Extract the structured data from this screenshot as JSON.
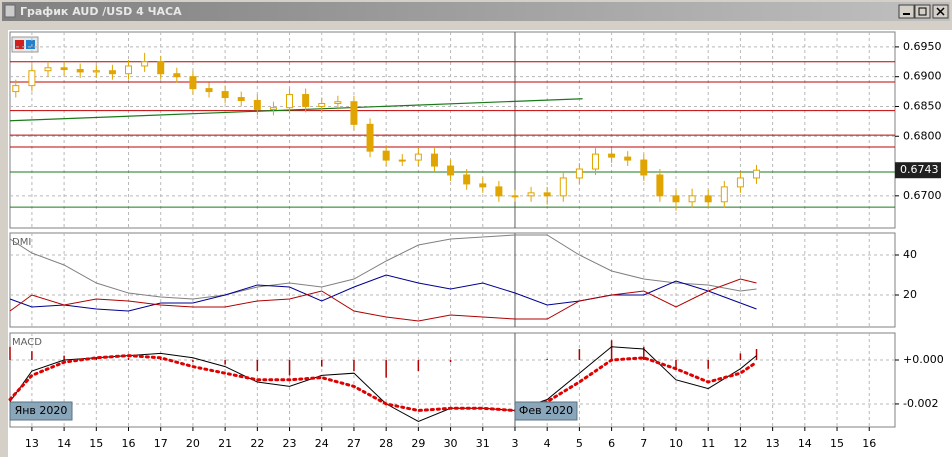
{
  "window": {
    "title": "График AUD /USD  4 ЧАСА"
  },
  "month_labels": [
    {
      "value": -0.68,
      "label": "Янв 2020"
    },
    {
      "value": 15,
      "label": "Фев 2020"
    }
  ],
  "chart_data": [
    {
      "type": "candlestick",
      "xlim": [
        -0.68,
        26.8
      ],
      "ylim": [
        0.6646,
        0.6975
      ],
      "yticks": [
        {
          "value": 0.695,
          "label": "0.6950"
        },
        {
          "value": 0.69,
          "label": "0.6900"
        },
        {
          "value": 0.685,
          "label": "0.6850"
        },
        {
          "value": 0.68,
          "label": "0.6800"
        },
        {
          "value": 0.67,
          "label": "0.6700"
        }
      ],
      "color": "#e0a500",
      "grid": true,
      "x": [
        -0.5,
        0,
        0.5,
        1,
        1.5,
        2,
        2.5,
        3,
        3.5,
        4,
        4.5,
        5,
        5.5,
        6,
        6.5,
        7,
        7.5,
        8,
        8.5,
        9,
        9.5,
        10,
        10.5,
        11,
        11.5,
        12,
        12.5,
        13,
        13.5,
        14,
        14.5,
        15,
        15.5,
        16,
        16.5,
        17,
        17.5,
        18,
        18.5,
        19,
        19.5,
        20,
        20.5,
        21,
        21.5,
        22,
        22.5
      ],
      "open": [
        0.6875,
        0.6885,
        0.691,
        0.6915,
        0.6912,
        0.6908,
        0.691,
        0.6905,
        0.6918,
        0.6925,
        0.6905,
        0.69,
        0.688,
        0.6875,
        0.6865,
        0.686,
        0.6845,
        0.6848,
        0.687,
        0.685,
        0.6855,
        0.6858,
        0.682,
        0.6775,
        0.676,
        0.676,
        0.677,
        0.675,
        0.6735,
        0.672,
        0.6715,
        0.67,
        0.67,
        0.6705,
        0.67,
        0.673,
        0.6745,
        0.677,
        0.6765,
        0.676,
        0.6735,
        0.67,
        0.669,
        0.67,
        0.669,
        0.6715,
        0.673
      ],
      "high": [
        0.6895,
        0.692,
        0.6925,
        0.6925,
        0.6922,
        0.692,
        0.692,
        0.6928,
        0.694,
        0.6935,
        0.6915,
        0.691,
        0.689,
        0.6885,
        0.6875,
        0.687,
        0.6858,
        0.688,
        0.688,
        0.6865,
        0.6868,
        0.6868,
        0.683,
        0.6785,
        0.677,
        0.6782,
        0.678,
        0.676,
        0.6745,
        0.673,
        0.6725,
        0.671,
        0.6715,
        0.6715,
        0.674,
        0.6755,
        0.678,
        0.678,
        0.6775,
        0.677,
        0.6745,
        0.671,
        0.6712,
        0.671,
        0.6725,
        0.674,
        0.6752
      ],
      "low": [
        0.6865,
        0.6875,
        0.69,
        0.6902,
        0.6898,
        0.6898,
        0.6895,
        0.6895,
        0.6908,
        0.6895,
        0.689,
        0.687,
        0.6865,
        0.6855,
        0.685,
        0.6835,
        0.6835,
        0.6838,
        0.684,
        0.684,
        0.6845,
        0.681,
        0.6765,
        0.675,
        0.675,
        0.675,
        0.674,
        0.6725,
        0.671,
        0.6705,
        0.669,
        0.669,
        0.669,
        0.6685,
        0.669,
        0.672,
        0.6735,
        0.6755,
        0.675,
        0.6725,
        0.669,
        0.6675,
        0.668,
        0.668,
        0.668,
        0.6705,
        0.672
      ],
      "close": [
        0.6885,
        0.691,
        0.6915,
        0.6912,
        0.6908,
        0.691,
        0.6905,
        0.6918,
        0.6925,
        0.6905,
        0.69,
        0.688,
        0.6875,
        0.6865,
        0.686,
        0.6845,
        0.6848,
        0.687,
        0.685,
        0.6855,
        0.6858,
        0.682,
        0.6775,
        0.676,
        0.676,
        0.677,
        0.675,
        0.6735,
        0.672,
        0.6715,
        0.67,
        0.67,
        0.6705,
        0.67,
        0.673,
        0.6745,
        0.677,
        0.6765,
        0.676,
        0.6735,
        0.67,
        0.669,
        0.67,
        0.669,
        0.6715,
        0.673,
        0.6743
      ],
      "levels": [
        {
          "value": 0.6925,
          "color": "#c00000"
        },
        {
          "value": 0.6891,
          "color": "#c00000"
        },
        {
          "value": 0.6843,
          "color": "#c00000"
        },
        {
          "value": 0.6802,
          "color": "#c00000"
        },
        {
          "value": 0.6782,
          "color": "#c00000"
        },
        {
          "value": 0.674,
          "color": "#1a7a1a"
        },
        {
          "value": 0.6681,
          "color": "#1a7a1a"
        }
      ],
      "trendline": {
        "x": [
          -0.68,
          17.1
        ],
        "values": [
          0.6826,
          0.6863
        ],
        "color": "#1a7a1a"
      },
      "last_price": {
        "value": 0.6743,
        "label": "0.6743"
      }
    },
    {
      "type": "line",
      "title": "DMI",
      "xlim": [
        -0.68,
        26.8
      ],
      "ylim": [
        4,
        51
      ],
      "yticks": [
        40,
        20
      ],
      "grid": true,
      "x": [
        -0.68,
        0,
        1,
        2,
        3,
        4,
        5,
        6,
        7,
        8,
        9,
        10,
        11,
        12,
        13,
        14,
        15,
        16,
        17,
        18,
        19,
        20,
        21,
        22,
        22.5
      ],
      "series": [
        {
          "color": "#808080",
          "style": "line",
          "values": [
            48,
            41,
            35,
            26,
            21,
            19,
            18,
            20,
            24,
            26,
            24,
            28,
            37,
            45,
            48,
            49,
            50,
            50,
            40,
            32,
            28,
            26,
            25,
            22,
            23
          ]
        },
        {
          "color": "#000090",
          "style": "line",
          "values": [
            18,
            14,
            15,
            13,
            12,
            16,
            16,
            20,
            25,
            24,
            17,
            24,
            30,
            26,
            23,
            26,
            21,
            15,
            17,
            20,
            20,
            27,
            22,
            16,
            13
          ]
        },
        {
          "color": "#b00000",
          "style": "line",
          "values": [
            12,
            20,
            15,
            18,
            17,
            15,
            14,
            14,
            17,
            18,
            22,
            12,
            9,
            7,
            10,
            9,
            8,
            8,
            17,
            20,
            22,
            14,
            22,
            28,
            26
          ]
        }
      ]
    },
    {
      "type": "line",
      "title": "MACD",
      "xlim": [
        -0.68,
        26.8
      ],
      "ylim": [
        -0.00305,
        0.00123
      ],
      "yticks": [
        {
          "value": 0,
          "label": "+0.000"
        },
        {
          "value": -0.002,
          "label": "-0.002"
        }
      ],
      "grid": true,
      "xticks": [
        {
          "value": 0,
          "label": "13"
        },
        {
          "value": 1,
          "label": "14"
        },
        {
          "value": 2,
          "label": "15"
        },
        {
          "value": 3,
          "label": "16"
        },
        {
          "value": 4,
          "label": "17"
        },
        {
          "value": 5,
          "label": "20"
        },
        {
          "value": 6,
          "label": "21"
        },
        {
          "value": 7,
          "label": "22"
        },
        {
          "value": 8,
          "label": "23"
        },
        {
          "value": 9,
          "label": "24"
        },
        {
          "value": 10,
          "label": "27"
        },
        {
          "value": 11,
          "label": "28"
        },
        {
          "value": 12,
          "label": "29"
        },
        {
          "value": 13,
          "label": "30"
        },
        {
          "value": 14,
          "label": "31"
        },
        {
          "value": 15,
          "label": "3"
        },
        {
          "value": 16,
          "label": "4"
        },
        {
          "value": 17,
          "label": "5"
        },
        {
          "value": 18,
          "label": "6"
        },
        {
          "value": 19,
          "label": "7"
        },
        {
          "value": 20,
          "label": "10"
        },
        {
          "value": 21,
          "label": "11"
        },
        {
          "value": 22,
          "label": "12"
        },
        {
          "value": 23,
          "label": "13"
        },
        {
          "value": 24,
          "label": "14"
        },
        {
          "value": 25,
          "label": "15"
        },
        {
          "value": 26,
          "label": "16"
        }
      ],
      "x": [
        -0.68,
        0,
        1,
        2,
        3,
        4,
        5,
        6,
        7,
        8,
        9,
        10,
        11,
        12,
        13,
        14,
        15,
        16,
        17,
        18,
        19,
        20,
        21,
        22,
        22.5
      ],
      "series": [
        {
          "color": "#b00000",
          "style": "histogram",
          "values": [
            0.0006,
            0.0004,
            0.0002,
            0.0001,
            0.0001,
            0.0001,
            -0.0001,
            -0.0002,
            -0.0005,
            -0.0007,
            -0.0003,
            -0.0005,
            -0.0008,
            -0.0005,
            -0.0001,
            0,
            0,
            5e-05,
            0.0005,
            0.0009,
            0.0006,
            -0.0004,
            -0.0004,
            0.0003,
            0.0005
          ]
        },
        {
          "color": "#000000",
          "style": "line",
          "values": [
            -0.0019,
            -0.0005,
            0,
            0.0001,
            0.0002,
            0.0003,
            0.0001,
            -0.0003,
            -0.001,
            -0.0012,
            -0.0007,
            -0.0006,
            -0.002,
            -0.0028,
            -0.0022,
            -0.0022,
            -0.0023,
            -0.0018,
            -0.0006,
            0.0006,
            0.0005,
            -0.0009,
            -0.0013,
            -0.0004,
            0.0002
          ]
        },
        {
          "color": "#e00000",
          "style": "dotted",
          "values": [
            -0.0018,
            -0.0007,
            -0.0001,
            0.0001,
            0.0002,
            0.0001,
            -0.0003,
            -0.0006,
            -0.0009,
            -0.0009,
            -0.0008,
            -0.0012,
            -0.002,
            -0.0023,
            -0.0022,
            -0.0022,
            -0.0023,
            -0.0019,
            -0.001,
            0,
            0.0001,
            -0.0004,
            -0.001,
            -0.0006,
            -0.0001
          ]
        }
      ]
    }
  ]
}
